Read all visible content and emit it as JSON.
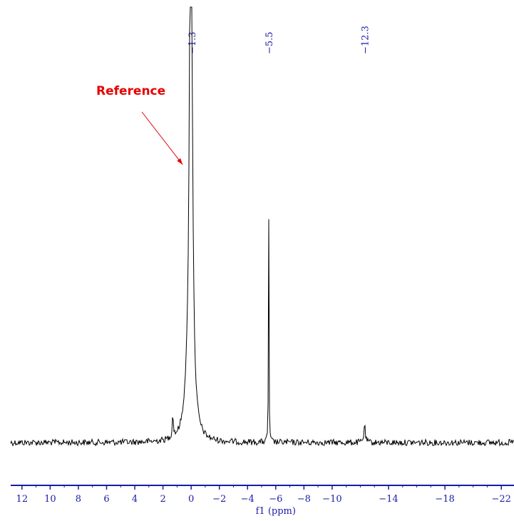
{
  "chart_data": {
    "type": "line",
    "xlabel": "f1 (ppm)",
    "x_reversed": true,
    "xlim": [
      12.8,
      -22.9
    ],
    "ticks_major": [
      12,
      10,
      8,
      6,
      4,
      2,
      0,
      -2,
      -4,
      -6,
      -8,
      -10,
      -14,
      -18,
      -22
    ],
    "tick_labels": [
      "12",
      "10",
      "8",
      "6",
      "4",
      "2",
      "0",
      "−2",
      "−4",
      "−6",
      "−8",
      "−10",
      "−14",
      "−18",
      "−22"
    ],
    "peak_labels": [
      "−1.3",
      "−5.5",
      "−12.3"
    ],
    "peak_label_positions": [
      -0.05,
      -5.5,
      -12.3
    ],
    "peaks": [
      {
        "ppm": 0.02,
        "height": 1.0,
        "clipped": true
      },
      {
        "ppm": -5.5,
        "height": 0.54
      },
      {
        "ppm": -12.3,
        "height": 0.04
      },
      {
        "ppm": 1.3,
        "height": 0.05
      }
    ],
    "annotation": {
      "text": "Reference",
      "points_to_ppm": 0.3
    },
    "colors": {
      "spectrum": "#000000",
      "axis": "#1a1aa6",
      "ticks": "#1a1aa6",
      "annotation": "#e60000"
    }
  }
}
